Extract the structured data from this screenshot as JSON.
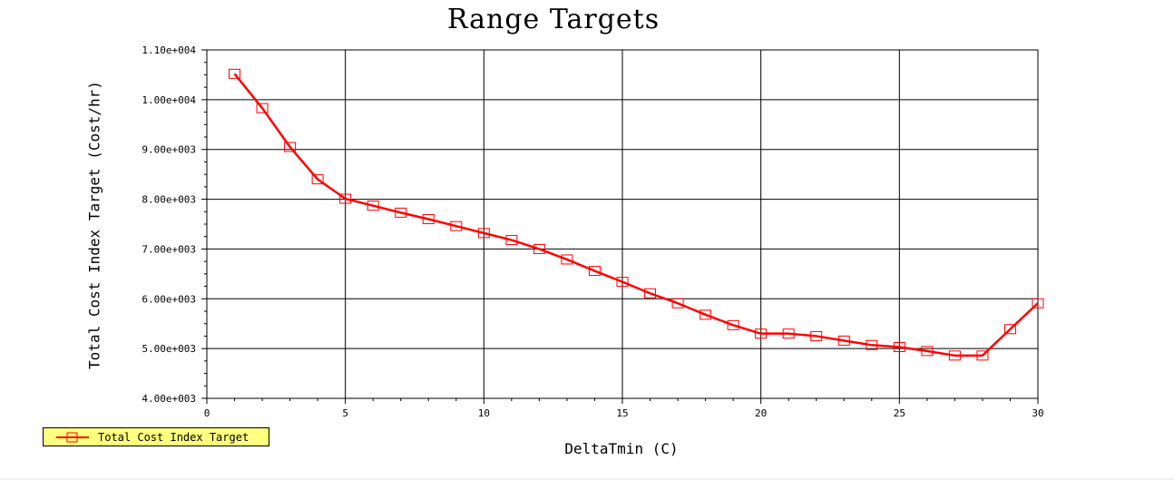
{
  "chart_data": {
    "type": "line",
    "title": "Range Targets",
    "xlabel": "DeltaTmin (C)",
    "ylabel": "Total Cost Index Target (Cost/hr)",
    "xlim": [
      0,
      30
    ],
    "ylim": [
      4000,
      11000
    ],
    "xticks": [
      0,
      5,
      10,
      15,
      20,
      25,
      30
    ],
    "xtick_labels": [
      "0",
      "5",
      "10",
      "15",
      "20",
      "25",
      "30"
    ],
    "yticks": [
      4000,
      5000,
      6000,
      7000,
      8000,
      9000,
      10000,
      11000
    ],
    "ytick_labels": [
      "4.00e+003",
      "5.00e+003",
      "6.00e+003",
      "7.00e+003",
      "8.00e+003",
      "9.00e+003",
      "1.00e+004",
      "1.10e+004"
    ],
    "grid": true,
    "legend_position": "bottom-left",
    "series": [
      {
        "name": "Total Cost Index Target",
        "color": "#ff0000",
        "marker": "square",
        "x": [
          1,
          2,
          3,
          4,
          5,
          6,
          7,
          8,
          9,
          10,
          11,
          12,
          13,
          14,
          15,
          16,
          17,
          18,
          19,
          20,
          21,
          22,
          23,
          24,
          25,
          26,
          27,
          28,
          29,
          30
        ],
        "y": [
          10520,
          9830,
          9050,
          8400,
          8010,
          7870,
          7730,
          7600,
          7460,
          7320,
          7180,
          7000,
          6790,
          6560,
          6340,
          6110,
          5910,
          5680,
          5470,
          5300,
          5300,
          5250,
          5160,
          5070,
          5030,
          4950,
          4860,
          4860,
          5390,
          5910
        ]
      }
    ]
  }
}
